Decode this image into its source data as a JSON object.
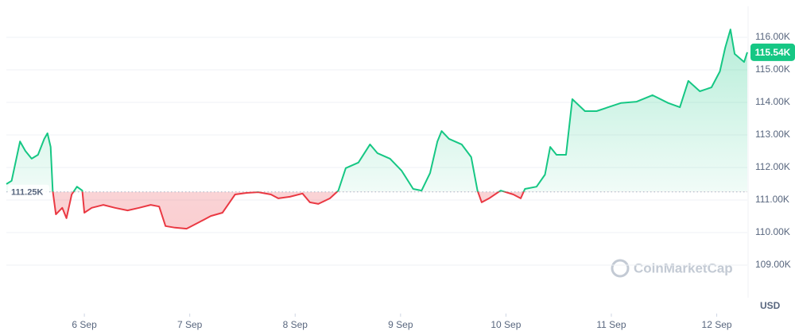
{
  "chart_data": {
    "type": "line",
    "x": [
      5.26,
      5.31,
      5.39,
      5.44,
      5.5,
      5.56,
      5.62,
      5.65,
      5.68,
      5.7,
      5.73,
      5.79,
      5.83,
      5.88,
      5.93,
      5.98,
      6.0,
      6.07,
      6.18,
      6.29,
      6.41,
      6.52,
      6.63,
      6.71,
      6.77,
      6.86,
      6.97,
      7.09,
      7.2,
      7.31,
      7.43,
      7.54,
      7.65,
      7.77,
      7.84,
      7.95,
      8.07,
      8.14,
      8.22,
      8.33,
      8.41,
      8.48,
      8.6,
      8.71,
      8.78,
      8.9,
      9.01,
      9.12,
      9.2,
      9.28,
      9.35,
      9.39,
      9.46,
      9.58,
      9.67,
      9.73,
      9.77,
      9.84,
      9.95,
      10.07,
      10.14,
      10.18,
      10.29,
      10.37,
      10.42,
      10.48,
      10.57,
      10.63,
      10.75,
      10.86,
      10.97,
      11.09,
      11.24,
      11.39,
      11.54,
      11.65,
      11.73,
      11.84,
      11.95,
      12.03,
      12.08,
      12.13,
      12.17,
      12.26,
      12.29
    ],
    "values": [
      111.49,
      111.59,
      112.8,
      112.51,
      112.27,
      112.39,
      112.88,
      113.05,
      112.63,
      111.29,
      110.56,
      110.76,
      110.44,
      111.17,
      111.41,
      111.29,
      110.61,
      110.76,
      110.85,
      110.76,
      110.68,
      110.76,
      110.85,
      110.8,
      110.2,
      110.15,
      110.12,
      110.32,
      110.51,
      110.61,
      111.17,
      111.22,
      111.24,
      111.17,
      111.05,
      111.1,
      111.2,
      110.93,
      110.88,
      111.05,
      111.29,
      111.98,
      112.15,
      112.71,
      112.44,
      112.27,
      111.9,
      111.34,
      111.29,
      111.83,
      112.8,
      113.12,
      112.88,
      112.71,
      112.32,
      111.29,
      110.93,
      111.05,
      111.29,
      111.17,
      111.05,
      111.34,
      111.41,
      111.78,
      112.63,
      112.39,
      112.39,
      114.1,
      113.73,
      113.73,
      113.85,
      113.98,
      114.02,
      114.22,
      113.98,
      113.85,
      114.66,
      114.34,
      114.46,
      114.95,
      115.68,
      116.24,
      115.49,
      115.24,
      115.54
    ],
    "up_color": "#16c784",
    "down_color": "#ea3943",
    "xlim": [
      5.26,
      12.29
    ],
    "xticks": [
      {
        "value": 6,
        "label": "6 Sep"
      },
      {
        "value": 7,
        "label": "7 Sep"
      },
      {
        "value": 8,
        "label": "8 Sep"
      },
      {
        "value": 9,
        "label": "9 Sep"
      },
      {
        "value": 10,
        "label": "10 Sep"
      },
      {
        "value": 11,
        "label": "11 Sep"
      },
      {
        "value": 12,
        "label": "12 Sep"
      }
    ],
    "ylim": [
      108.0,
      116.95
    ],
    "yticks": [
      {
        "value": 109,
        "label": "109.00K"
      },
      {
        "value": 110,
        "label": "110.00K"
      },
      {
        "value": 111,
        "label": "111.00K"
      },
      {
        "value": 112,
        "label": "112.00K"
      },
      {
        "value": 113,
        "label": "113.00K"
      },
      {
        "value": 114,
        "label": "114.00K"
      },
      {
        "value": 115,
        "label": "115.00K"
      },
      {
        "value": 116,
        "label": "116.00K"
      }
    ],
    "grid": true,
    "baseline": 111.25,
    "baseline_label": "111.25K",
    "current_price": 115.54,
    "current_price_label": "115.54K",
    "unit": "USD",
    "watermark": "CoinMarketCap"
  }
}
